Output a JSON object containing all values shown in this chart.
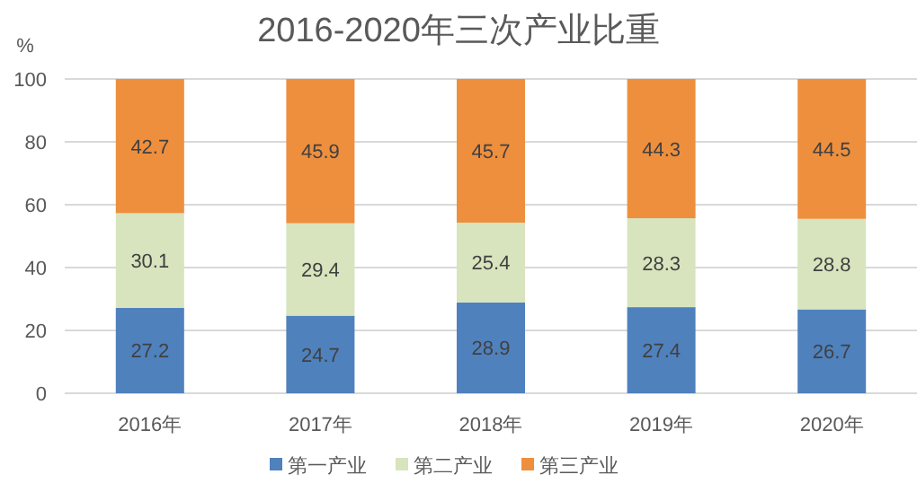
{
  "chart_data": {
    "type": "bar",
    "stacked": true,
    "title": "2016-2020年三次产业比重",
    "ylabel": "%",
    "categories": [
      "2016年",
      "2017年",
      "2018年",
      "2019年",
      "2020年"
    ],
    "series": [
      {
        "name": "第一产业",
        "color": "#4f81bd",
        "values": [
          27.2,
          24.7,
          28.9,
          27.4,
          26.7
        ]
      },
      {
        "name": "第二产业",
        "color": "#d7e4bd",
        "values": [
          30.1,
          29.4,
          25.4,
          28.3,
          28.8
        ]
      },
      {
        "name": "第三产业",
        "color": "#ee8f3e",
        "values": [
          42.7,
          45.9,
          45.7,
          44.3,
          44.5
        ]
      }
    ],
    "ylim": [
      0,
      100
    ],
    "yticks": [
      0,
      20,
      40,
      60,
      80,
      100
    ],
    "grid": "y",
    "legend": "bottom",
    "data_labels": true
  }
}
